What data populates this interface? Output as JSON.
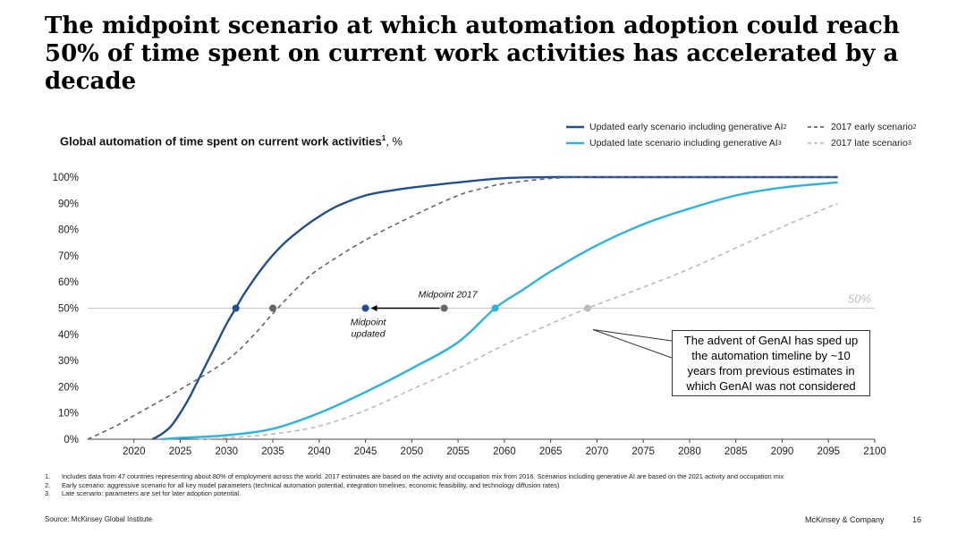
{
  "page": {
    "title": "The midpoint scenario at which automation adoption could reach 50% of time spent on current work activities has accelerated by a decade",
    "source": "Source: McKinsey Global Institute",
    "brand": "McKinsey & Company",
    "page_number": "16"
  },
  "footnotes": [
    {
      "num": "1.",
      "text": "Includes data from 47 countries representing about 80% of employment across the world. 2017 estimates are based on the activity and occupation mix from 2016. Scenarios including generative AI are based on the 2021 activity and occupation mix"
    },
    {
      "num": "2.",
      "text": "Early scenario: aggressive scenario for all key model parameters (technical automation potential, integration timelines, economic feasibility, and technology diffusion rates)"
    },
    {
      "num": "3.",
      "text": "Late scenario: parameters are set for later adoption potential."
    }
  ],
  "colors": {
    "early_updated": "#1f4e93",
    "late_updated": "#27b4e3",
    "early_2017": "#666666",
    "late_2017": "#bbbbbb",
    "reference_line": "#c8c8c8"
  },
  "chart_data": {
    "type": "line",
    "title": "Global automation of time spent on current work activities",
    "title_sup": "1",
    "title_unit": ", %",
    "xlabel": "",
    "ylabel": "",
    "xlim": [
      2015,
      2100
    ],
    "ylim": [
      0,
      100
    ],
    "x_ticks": [
      2020,
      2025,
      2030,
      2035,
      2040,
      2045,
      2050,
      2055,
      2060,
      2065,
      2070,
      2075,
      2080,
      2085,
      2090,
      2095,
      2100
    ],
    "y_ticks": [
      0,
      10,
      20,
      30,
      40,
      50,
      60,
      70,
      80,
      90,
      100
    ],
    "y_tick_suffix": "%",
    "reference_line": {
      "y": 50,
      "label": "50%"
    },
    "series": [
      {
        "name": "Updated early scenario including generative AI",
        "sup": "2",
        "style": "solid",
        "color": "#1f4e93",
        "x": [
          2022,
          2023,
          2024,
          2025,
          2026,
          2027,
          2028,
          2029,
          2030,
          2031,
          2032,
          2034,
          2036,
          2038,
          2040,
          2042,
          2045,
          2048,
          2050,
          2055,
          2060,
          2065,
          2070,
          2080,
          2090,
          2096
        ],
        "y": [
          0,
          2,
          5,
          10,
          16,
          23,
          30,
          37,
          44,
          50,
          56,
          66,
          74,
          80,
          85,
          89,
          93,
          95,
          96,
          98,
          99.6,
          100,
          100,
          100,
          100,
          100
        ]
      },
      {
        "name": "2017 early scenario",
        "sup": "2",
        "style": "dashed",
        "color": "#666666",
        "x": [
          2015,
          2018,
          2020,
          2025,
          2030,
          2033,
          2035,
          2038,
          2040,
          2045,
          2050,
          2055,
          2058,
          2060,
          2065,
          2070,
          2080,
          2090,
          2096
        ],
        "y": [
          0,
          5,
          9,
          19,
          30,
          40,
          48,
          59,
          65,
          76,
          85,
          93,
          96,
          97.5,
          99.5,
          100,
          100,
          100,
          100
        ]
      },
      {
        "name": "Updated late scenario including generative AI",
        "sup": "3",
        "style": "solid",
        "color": "#27b4e3",
        "x": [
          2023,
          2025,
          2030,
          2035,
          2040,
          2045,
          2050,
          2055,
          2059,
          2062,
          2065,
          2070,
          2075,
          2080,
          2085,
          2090,
          2096
        ],
        "y": [
          0,
          0.5,
          1.5,
          4,
          10,
          18,
          27,
          37,
          50,
          57,
          64,
          74,
          82,
          88,
          93,
          96,
          98
        ]
      },
      {
        "name": "2017 late scenario",
        "sup": "3",
        "style": "dashed",
        "color": "#bbbbbb",
        "x": [
          2027,
          2030,
          2035,
          2040,
          2045,
          2050,
          2055,
          2060,
          2065,
          2069,
          2075,
          2080,
          2085,
          2090,
          2096
        ],
        "y": [
          0,
          0.5,
          2,
          5,
          11,
          19,
          27,
          36,
          44,
          50,
          58,
          65,
          73,
          81,
          90
        ]
      }
    ],
    "markers": [
      {
        "x": 2031,
        "y": 50,
        "series": "Updated early scenario including generative AI"
      },
      {
        "x": 2035,
        "y": 50,
        "series": "2017 early scenario"
      },
      {
        "x": 2045,
        "y": 50,
        "series": "Updated early scenario including generative AI"
      },
      {
        "x": 2053.5,
        "y": 50,
        "series": "2017 early scenario"
      },
      {
        "x": 2059,
        "y": 50,
        "series": "Updated late scenario including generative AI"
      },
      {
        "x": 2069,
        "y": 50,
        "series": "2017 late scenario"
      }
    ],
    "annotations": {
      "midpoint_2017": "Midpoint 2017",
      "midpoint_updated_line1": "Midpoint",
      "midpoint_updated_line2": "updated",
      "callout": "The advent of GenAI has sped up the automation timeline by ~10 years from previous estimates in which GenAI was not considered"
    }
  }
}
